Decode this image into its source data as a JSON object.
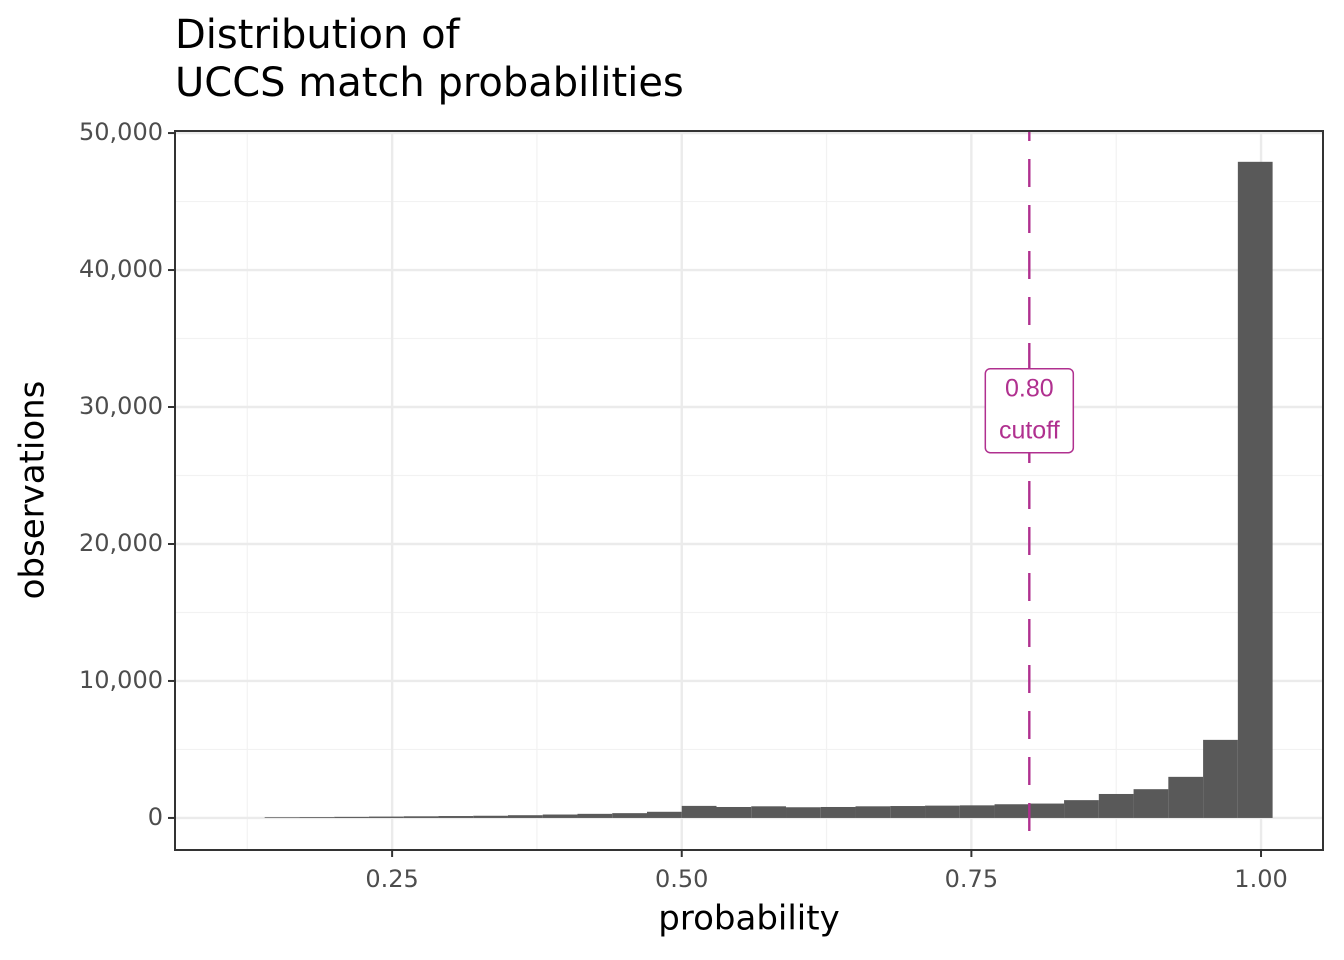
{
  "chart_data": {
    "type": "histogram",
    "title": [
      "Distribution of",
      "UCCS match probabilities"
    ],
    "x_label": "probability",
    "y_label": "observations",
    "bins": [
      0.14,
      0.17,
      0.2,
      0.23,
      0.26,
      0.29,
      0.32,
      0.35,
      0.38,
      0.41,
      0.44,
      0.47,
      0.5,
      0.53,
      0.56,
      0.59,
      0.62,
      0.65,
      0.68,
      0.71,
      0.74,
      0.77,
      0.8,
      0.83,
      0.86,
      0.89,
      0.92,
      0.95,
      0.98,
      1.01
    ],
    "counts": [
      50,
      60,
      80,
      100,
      120,
      140,
      160,
      200,
      250,
      300,
      350,
      450,
      880,
      800,
      850,
      780,
      800,
      850,
      870,
      900,
      920,
      1000,
      1050,
      1300,
      1750,
      2100,
      3000,
      5700,
      47900
    ],
    "color": "#595959",
    "xlim": [
      0.0626,
      1.0535
    ],
    "ylim": [
      -2340,
      50150
    ],
    "xticks": [
      0.25,
      {
        "value": 0.5,
        "label": "0.50"
      },
      0.75,
      {
        "value": 1.0,
        "label": "1.00"
      }
    ],
    "yticks": [
      {
        "value": 0,
        "label": "0"
      },
      {
        "value": 10000,
        "label": "10,000"
      },
      {
        "value": 20000,
        "label": "20,000"
      },
      {
        "value": 30000,
        "label": "30,000"
      },
      {
        "value": 40000,
        "label": "40,000"
      },
      {
        "value": 50000,
        "label": "50,000"
      }
    ],
    "xminor_ticks": [
      0.125,
      0.375,
      0.625,
      0.875
    ],
    "yminor_ticks": [
      5000,
      15000,
      25000,
      35000,
      45000
    ],
    "grid": true,
    "cutoff": {
      "value": 0.8,
      "value_label": "0.80",
      "text": "cutoff",
      "color": "#b0308f"
    }
  }
}
